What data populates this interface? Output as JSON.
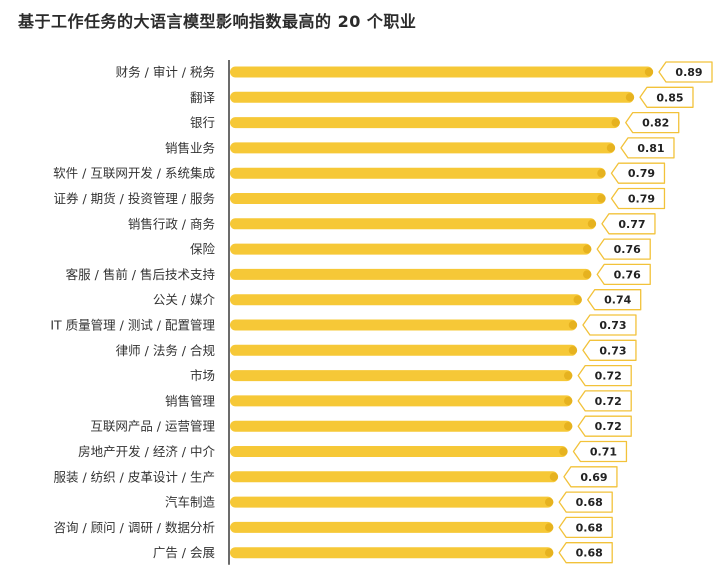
{
  "chart_data": {
    "type": "bar",
    "orientation": "horizontal",
    "title": "基于工作任务的大语言模型影响指数最高的 20 个职业",
    "categories": [
      "财务 / 审计 / 税务",
      "翻译",
      "银行",
      "销售业务",
      "软件 / 互联网开发 / 系统集成",
      "证券 / 期货 / 投资管理 / 服务",
      "销售行政 / 商务",
      "保险",
      "客服 / 售前 / 售后技术支持",
      "公关 / 媒介",
      "IT 质量管理 / 测试 / 配置管理",
      "律师 / 法务 / 合规",
      "市场",
      "销售管理",
      "互联网产品 / 运营管理",
      "房地产开发 / 经济 / 中介",
      "服装 / 纺织 / 皮革设计 / 生产",
      "汽车制造",
      "咨询 / 顾问 / 调研 / 数据分析",
      "广告 / 会展"
    ],
    "values": [
      0.89,
      0.85,
      0.82,
      0.81,
      0.79,
      0.79,
      0.77,
      0.76,
      0.76,
      0.74,
      0.73,
      0.73,
      0.72,
      0.72,
      0.72,
      0.71,
      0.69,
      0.68,
      0.68,
      0.68
    ],
    "value_labels": [
      "0.89",
      "0.85",
      "0.82",
      "0.81",
      "0.79",
      "0.79",
      "0.77",
      "0.76",
      "0.76",
      "0.74",
      "0.73",
      "0.73",
      "0.72",
      "0.72",
      "0.72",
      "0.71",
      "0.69",
      "0.68",
      "0.68",
      "0.68"
    ],
    "xlim": [
      0,
      0.89
    ],
    "grid": false,
    "colors": {
      "bar": "#F6C837",
      "bar_end": "#E6B21F",
      "label_border": "#F2C23A",
      "axis": "#3a3a3a"
    }
  }
}
